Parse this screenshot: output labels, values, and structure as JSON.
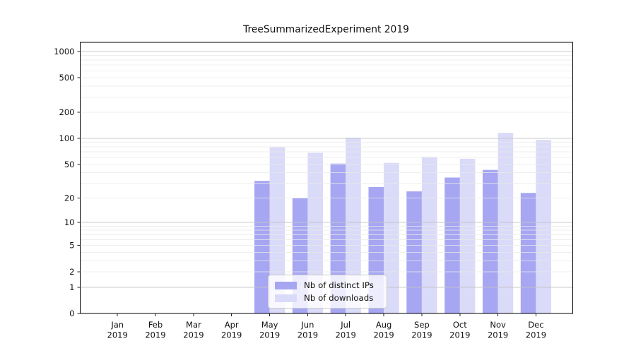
{
  "figure": {
    "background": "#ffffff"
  },
  "chart_data": {
    "type": "bar",
    "title": "TreeSummarizedExperiment 2019",
    "categories": [
      "Jan",
      "Feb",
      "Mar",
      "Apr",
      "May",
      "Jun",
      "Jul",
      "Aug",
      "Sep",
      "Oct",
      "Nov",
      "Dec"
    ],
    "category_year": "2019",
    "series": [
      {
        "name": "Nb of distinct IPs",
        "color": "#a6a6f2",
        "values": [
          0,
          0,
          0,
          0,
          32,
          20,
          51,
          27,
          24,
          35,
          43,
          23
        ]
      },
      {
        "name": "Nb of downloads",
        "color": "#dadaf9",
        "values": [
          0,
          0,
          0,
          0,
          79,
          68,
          102,
          52,
          61,
          58,
          116,
          96
        ]
      }
    ],
    "xlabel": "",
    "ylabel": "",
    "y_axis": {
      "scale": "log1p",
      "ticks": [
        0,
        1,
        2,
        5,
        10,
        20,
        50,
        100,
        200,
        500,
        1000
      ],
      "range": [
        0,
        1100
      ]
    },
    "grid": {
      "major": [
        1,
        10,
        100,
        1000
      ],
      "minor_per_decade": [
        2,
        3,
        4,
        5,
        6,
        7,
        8,
        9
      ],
      "drawn_above_bars": true
    },
    "legend": {
      "position": "lower-center-left-inside"
    },
    "colors": {
      "major_grid": "#c6c6c6",
      "minor_grid": "#eaeaea",
      "spine": "#000000",
      "tick": "#222222",
      "text": "#111111"
    }
  }
}
